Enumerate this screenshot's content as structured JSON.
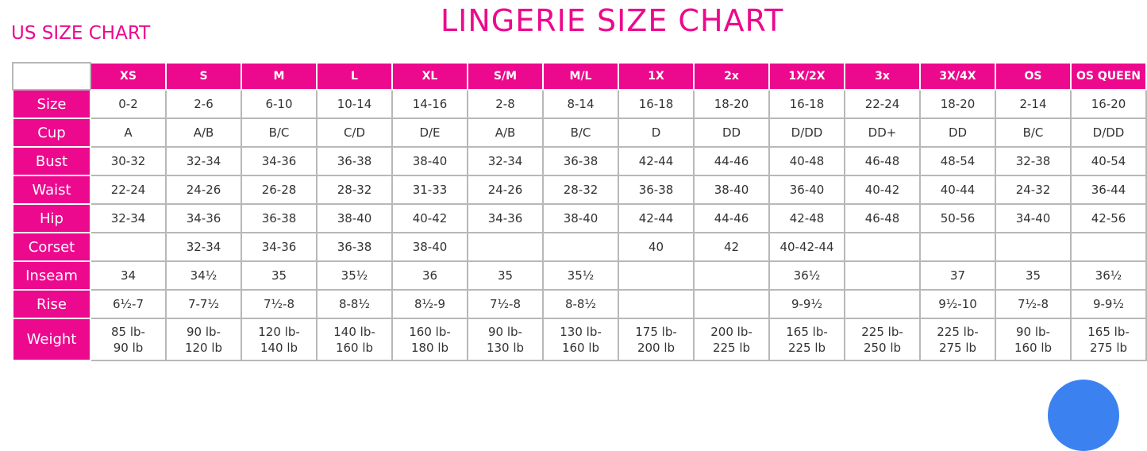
{
  "title": "LINGERIE SIZE CHART",
  "subtitle": "US SIZE CHART",
  "colors": {
    "accent": "#ec098d",
    "fab": "#3b82f0"
  },
  "columns": [
    "XS",
    "S",
    "M",
    "L",
    "XL",
    "S/M",
    "M/L",
    "1X",
    "2x",
    "1X/2X",
    "3x",
    "3X/4X",
    "OS",
    "OS QUEEN"
  ],
  "rows": [
    {
      "label": "Size",
      "values": [
        "0-2",
        "2-6",
        "6-10",
        "10-14",
        "14-16",
        "2-8",
        "8-14",
        "16-18",
        "18-20",
        "16-18",
        "22-24",
        "18-20",
        "2-14",
        "16-20"
      ]
    },
    {
      "label": "Cup",
      "values": [
        "A",
        "A/B",
        "B/C",
        "C/D",
        "D/E",
        "A/B",
        "B/C",
        "D",
        "DD",
        "D/DD",
        "DD+",
        "DD",
        "B/C",
        "D/DD"
      ]
    },
    {
      "label": "Bust",
      "values": [
        "30-32",
        "32-34",
        "34-36",
        "36-38",
        "38-40",
        "32-34",
        "36-38",
        "42-44",
        "44-46",
        "40-48",
        "46-48",
        "48-54",
        "32-38",
        "40-54"
      ]
    },
    {
      "label": "Waist",
      "values": [
        "22-24",
        "24-26",
        "26-28",
        "28-32",
        "31-33",
        "24-26",
        "28-32",
        "36-38",
        "38-40",
        "36-40",
        "40-42",
        "40-44",
        "24-32",
        "36-44"
      ]
    },
    {
      "label": "Hip",
      "values": [
        "32-34",
        "34-36",
        "36-38",
        "38-40",
        "40-42",
        "34-36",
        "38-40",
        "42-44",
        "44-46",
        "42-48",
        "46-48",
        "50-56",
        "34-40",
        "42-56"
      ]
    },
    {
      "label": "Corset",
      "values": [
        "",
        "32-34",
        "34-36",
        "36-38",
        "38-40",
        "",
        "",
        "40",
        "42",
        "40-42-44",
        "",
        "",
        "",
        ""
      ]
    },
    {
      "label": "Inseam",
      "values": [
        "34",
        "34½",
        "35",
        "35½",
        "36",
        "35",
        "35½",
        "",
        "",
        "36½",
        "",
        "37",
        "35",
        "36½"
      ]
    },
    {
      "label": "Rise",
      "values": [
        "6½-7",
        "7-7½",
        "7½-8",
        "8-8½",
        "8½-9",
        "7½-8",
        "8-8½",
        "",
        "",
        "9-9½",
        "",
        "9½-10",
        "7½-8",
        "9-9½"
      ]
    },
    {
      "label": "Weight",
      "values": [
        "85 lb-\n90 lb",
        "90 lb-\n120 lb",
        "120 lb-\n140 lb",
        "140 lb-\n160 lb",
        "160 lb-\n180 lb",
        "90 lb-\n130 lb",
        "130 lb-\n160 lb",
        "175 lb-\n200 lb",
        "200 lb-\n225 lb",
        "165 lb-\n225 lb",
        "225 lb-\n250 lb",
        "225 lb-\n275 lb",
        "90 lb-\n160 lb",
        "165 lb-\n275 lb"
      ]
    }
  ]
}
